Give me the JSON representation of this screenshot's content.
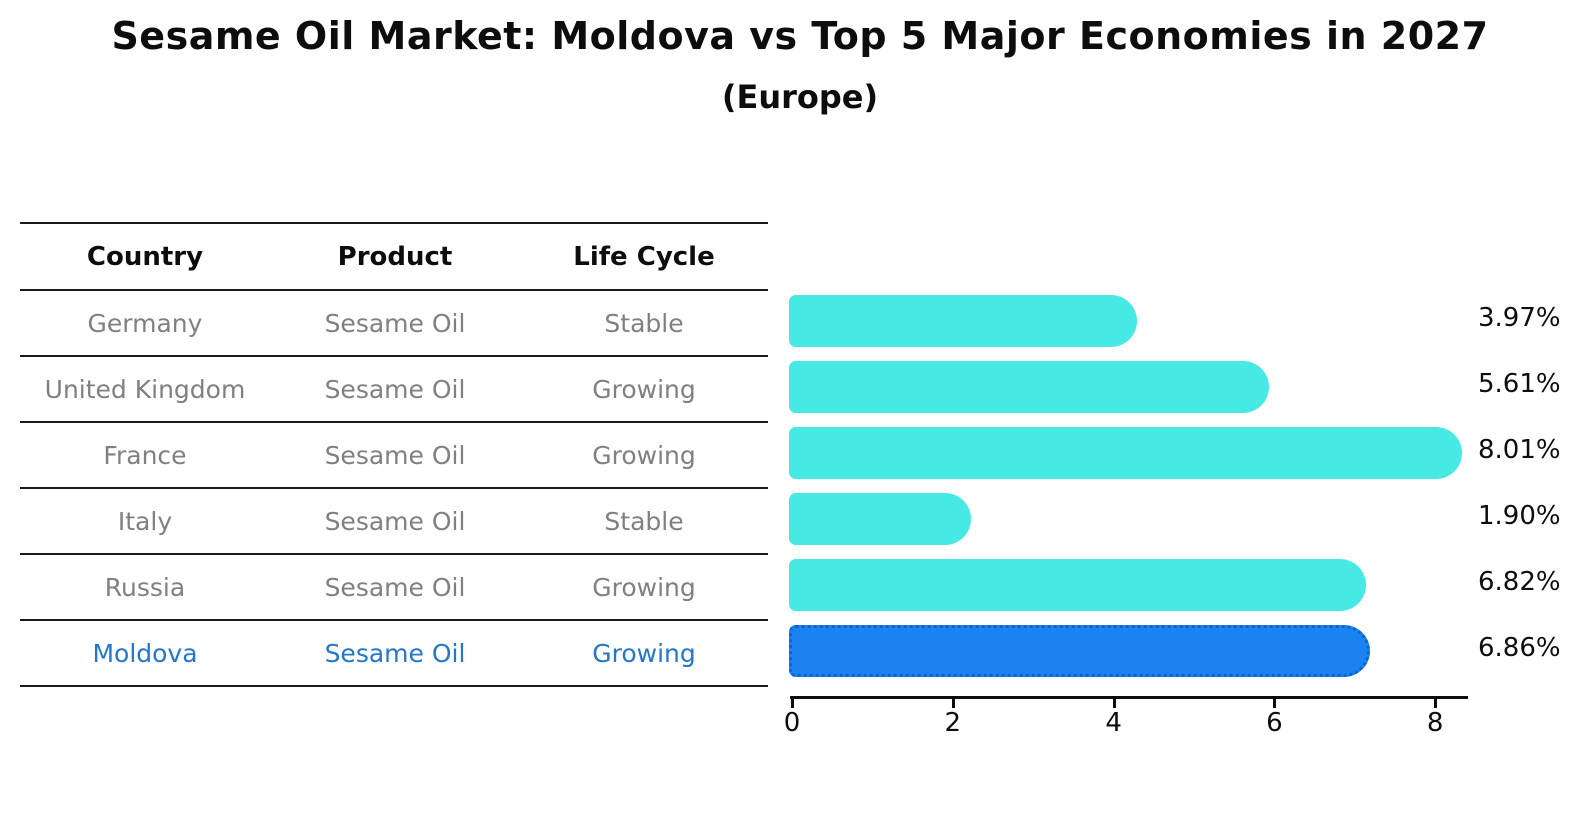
{
  "title": "Sesame Oil Market: Moldova vs Top 5 Major Economies in 2027",
  "subtitle": "(Europe)",
  "table": {
    "headers": [
      "Country",
      "Product",
      "Life Cycle"
    ],
    "rows": [
      {
        "country": "Germany",
        "product": "Sesame Oil",
        "life_cycle": "Stable",
        "highlight": false
      },
      {
        "country": "United Kingdom",
        "product": "Sesame Oil",
        "life_cycle": "Growing",
        "highlight": false
      },
      {
        "country": "France",
        "product": "Sesame Oil",
        "life_cycle": "Growing",
        "highlight": false
      },
      {
        "country": "Italy",
        "product": "Sesame Oil",
        "life_cycle": "Stable",
        "highlight": false
      },
      {
        "country": "Russia",
        "product": "Sesame Oil",
        "life_cycle": "Growing",
        "highlight": false
      },
      {
        "country": "Moldova",
        "product": "Sesame Oil",
        "life_cycle": "Growing",
        "highlight": true
      }
    ]
  },
  "chart_data": {
    "type": "bar",
    "orientation": "horizontal",
    "title": "Sesame Oil Market: Moldova vs Top 5 Major Economies in 2027",
    "subtitle": "(Europe)",
    "categories": [
      "Germany",
      "United Kingdom",
      "France",
      "Italy",
      "Russia",
      "Moldova"
    ],
    "values": [
      3.97,
      5.61,
      8.01,
      1.9,
      6.82,
      6.86
    ],
    "value_labels": [
      "3.97%",
      "5.61%",
      "8.01%",
      "1.90%",
      "6.82%",
      "6.86%"
    ],
    "x_ticks": [
      0,
      2,
      4,
      6,
      8
    ],
    "xlim": [
      0,
      8.4
    ],
    "xlabel": "",
    "ylabel": "",
    "grid": false,
    "legend": false,
    "highlight_category": "Moldova",
    "colors": {
      "bar": "#47e9e5",
      "highlight_bar": "#1a83f0",
      "highlight_bar_border": "#0f62d6",
      "row_text": "#808080",
      "highlight_text": "#2277cc",
      "header_text": "#0d0d0d",
      "axis": "#0d0d0d"
    }
  }
}
